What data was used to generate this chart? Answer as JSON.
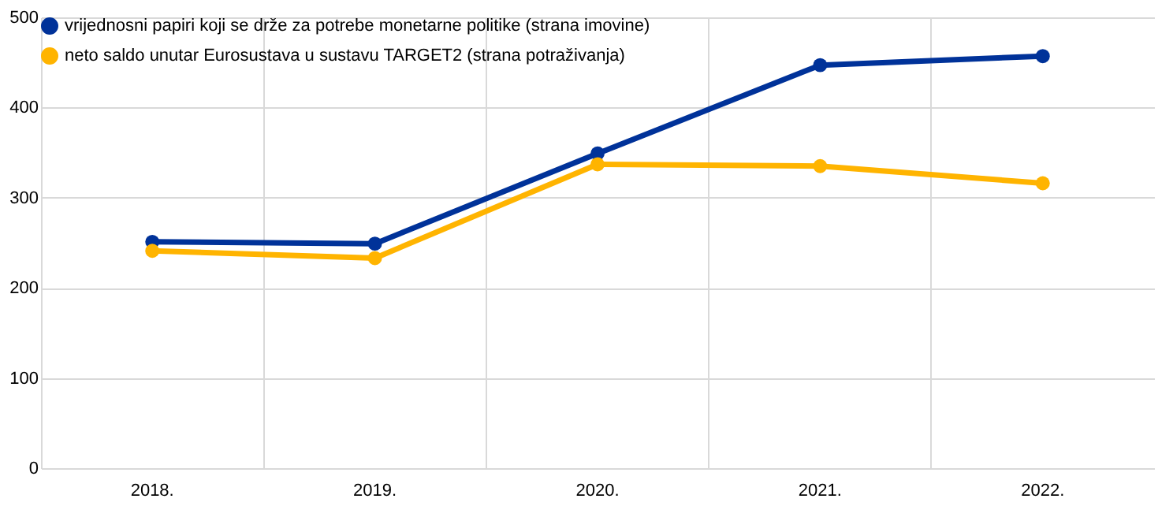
{
  "chart_data": {
    "type": "line",
    "categories": [
      "2018.",
      "2019.",
      "2020.",
      "2021.",
      "2022."
    ],
    "series": [
      {
        "name": "vrijednosni papiri koji se drže za potrebe monetarne politike (strana imovine)",
        "color": "#003299",
        "values": [
          251,
          249,
          349,
          447,
          457
        ]
      },
      {
        "name": "neto saldo unutar Eurosustava u sustavu TARGET2 (strana potraživanja)",
        "color": "#ffb400",
        "values": [
          241,
          233,
          337,
          335,
          316
        ]
      }
    ],
    "ylim": [
      0,
      500
    ],
    "yticks": [
      0,
      100,
      200,
      300,
      400,
      500
    ],
    "grid": true,
    "legend": "top left",
    "marker": "circle",
    "line_style": "solid"
  }
}
